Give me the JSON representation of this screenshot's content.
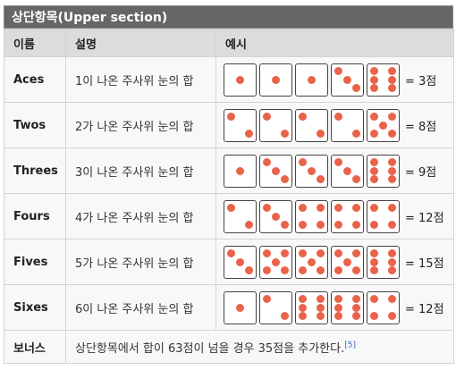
{
  "section": {
    "title": "상단항목(Upper section)"
  },
  "headers": {
    "name": "이름",
    "desc": "설명",
    "example": "예시"
  },
  "rows": [
    {
      "name": "Aces",
      "desc": "1이 나온 주사위 눈의 합",
      "dice": [
        1,
        1,
        1,
        3,
        6
      ],
      "result": "= 3점"
    },
    {
      "name": "Twos",
      "desc": "2가 나온 주사위 눈의 합",
      "dice": [
        2,
        2,
        2,
        2,
        5
      ],
      "result": "= 8점"
    },
    {
      "name": "Threes",
      "desc": "3이 나온 주사위 눈의 합",
      "dice": [
        1,
        3,
        3,
        3,
        6
      ],
      "result": "= 9점"
    },
    {
      "name": "Fours",
      "desc": "4가 나온 주사위 눈의 합",
      "dice": [
        2,
        3,
        4,
        4,
        4
      ],
      "result": "= 12점"
    },
    {
      "name": "Fives",
      "desc": "5가 나온 주사위 눈의 합",
      "dice": [
        3,
        5,
        5,
        5,
        6
      ],
      "result": "= 15점"
    },
    {
      "name": "Sixes",
      "desc": "6이 나온 주사위 눈의 합",
      "dice": [
        1,
        2,
        6,
        6,
        4
      ],
      "result": "= 12점"
    }
  ],
  "bonus": {
    "name": "보너스",
    "desc": "상단항목에서 합이 63점이 넘을 경우 35점을 추가한다.",
    "ref": "[5]"
  },
  "colors": {
    "pip": "#e8634a",
    "header_bg": "#dcdcdc",
    "title_bg": "#666666"
  }
}
